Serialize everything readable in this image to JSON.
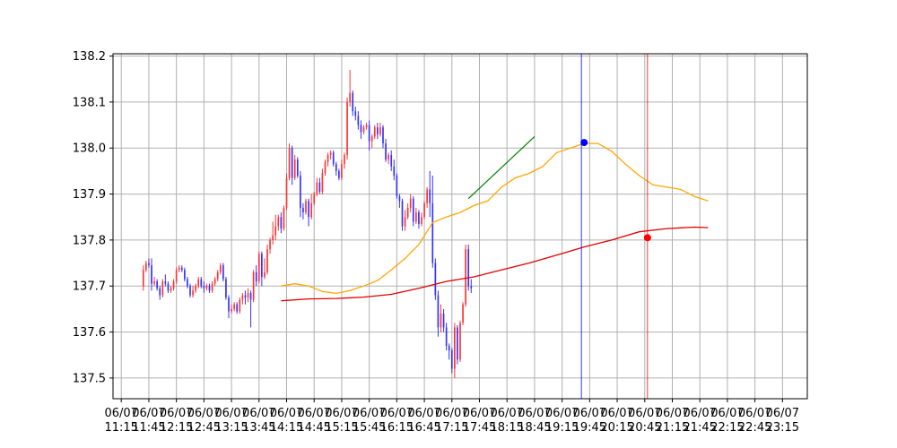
{
  "chart_data": {
    "type": "candlestick",
    "title": "",
    "xlabel": "",
    "ylabel": "",
    "ylim": [
      137.455,
      138.205
    ],
    "xlim": [
      0,
      252
    ],
    "grid": true,
    "colors": {
      "up": "#ff3333",
      "down": "#3333ff",
      "ma_short": "#ffa500",
      "ma_long": "#e00000",
      "trendline": "#008000",
      "marker_blue": "#0000ff",
      "marker_red": "#ff0000"
    },
    "y_ticks": [
      137.5,
      137.6,
      137.7,
      137.8,
      137.9,
      138.0,
      138.1,
      138.2
    ],
    "y_tick_labels": [
      "137.5",
      "137.6",
      "137.7",
      "137.8",
      "137.9",
      "138.0",
      "138.1",
      "138.2"
    ],
    "x_ticks": [
      {
        "x": 3,
        "date": "06/07",
        "time": "11:15"
      },
      {
        "x": 13,
        "date": "06/07",
        "time": "11:45"
      },
      {
        "x": 23,
        "date": "06/07",
        "time": "12:15"
      },
      {
        "x": 33,
        "date": "06/07",
        "time": "12:45"
      },
      {
        "x": 43,
        "date": "06/07",
        "time": "13:15"
      },
      {
        "x": 53,
        "date": "06/07",
        "time": "13:45"
      },
      {
        "x": 63,
        "date": "06/07",
        "time": "14:15"
      },
      {
        "x": 73,
        "date": "06/07",
        "time": "14:45"
      },
      {
        "x": 83,
        "date": "06/07",
        "time": "15:15"
      },
      {
        "x": 93,
        "date": "06/07",
        "time": "15:45"
      },
      {
        "x": 103,
        "date": "06/07",
        "time": "16:15"
      },
      {
        "x": 113,
        "date": "06/07",
        "time": "16:45"
      },
      {
        "x": 123,
        "date": "06/07",
        "time": "17:15"
      },
      {
        "x": 133,
        "date": "06/07",
        "time": "17:45"
      },
      {
        "x": 143,
        "date": "06/07",
        "time": "18:15"
      },
      {
        "x": 153,
        "date": "06/07",
        "time": "18:45"
      },
      {
        "x": 163,
        "date": "06/07",
        "time": "19:15"
      },
      {
        "x": 173,
        "date": "06/07",
        "time": "19:45"
      },
      {
        "x": 183,
        "date": "06/07",
        "time": "20:15"
      },
      {
        "x": 193,
        "date": "06/07",
        "time": "20:45"
      },
      {
        "x": 203,
        "date": "06/07",
        "time": "21:15"
      },
      {
        "x": 213,
        "date": "06/07",
        "time": "21:45"
      },
      {
        "x": 223,
        "date": "06/07",
        "time": "22:15"
      },
      {
        "x": 233,
        "date": "06/07",
        "time": "22:45"
      },
      {
        "x": 243,
        "date": "06/07",
        "time": "23:15"
      }
    ],
    "candle_start_x": 11,
    "candles": [
      [
        137.7,
        137.735,
        137.69,
        137.745
      ],
      [
        137.735,
        137.75,
        137.73,
        137.755
      ],
      [
        137.75,
        137.745,
        137.74,
        137.76
      ],
      [
        137.745,
        137.705,
        137.69,
        137.76
      ],
      [
        137.705,
        137.71,
        137.7,
        137.72
      ],
      [
        137.71,
        137.695,
        137.69,
        137.715
      ],
      [
        137.695,
        137.68,
        137.67,
        137.7
      ],
      [
        137.68,
        137.71,
        137.675,
        137.715
      ],
      [
        137.71,
        137.705,
        137.7,
        137.725
      ],
      [
        137.705,
        137.69,
        137.685,
        137.71
      ],
      [
        137.69,
        137.695,
        137.685,
        137.7
      ],
      [
        137.695,
        137.71,
        137.69,
        137.715
      ],
      [
        137.71,
        137.735,
        137.705,
        137.74
      ],
      [
        137.735,
        137.74,
        137.73,
        137.745
      ],
      [
        137.74,
        137.735,
        137.73,
        137.745
      ],
      [
        137.735,
        137.715,
        137.71,
        137.74
      ],
      [
        137.715,
        137.7,
        137.695,
        137.72
      ],
      [
        137.7,
        137.68,
        137.675,
        137.705
      ],
      [
        137.68,
        137.69,
        137.675,
        137.7
      ],
      [
        137.69,
        137.7,
        137.685,
        137.705
      ],
      [
        137.7,
        137.715,
        137.695,
        137.72
      ],
      [
        137.715,
        137.7,
        137.695,
        137.72
      ],
      [
        137.7,
        137.695,
        137.685,
        137.71
      ],
      [
        137.695,
        137.7,
        137.69,
        137.705
      ],
      [
        137.7,
        137.69,
        137.685,
        137.705
      ],
      [
        137.69,
        137.705,
        137.685,
        137.71
      ],
      [
        137.705,
        137.715,
        137.7,
        137.72
      ],
      [
        137.715,
        137.73,
        137.71,
        137.735
      ],
      [
        137.73,
        137.745,
        137.725,
        137.75
      ],
      [
        137.745,
        137.715,
        137.71,
        137.75
      ],
      [
        137.715,
        137.675,
        137.67,
        137.72
      ],
      [
        137.675,
        137.645,
        137.63,
        137.68
      ],
      [
        137.645,
        137.65,
        137.64,
        137.66
      ],
      [
        137.65,
        137.66,
        137.645,
        137.665
      ],
      [
        137.66,
        137.645,
        137.64,
        137.665
      ],
      [
        137.645,
        137.67,
        137.64,
        137.675
      ],
      [
        137.67,
        137.68,
        137.66,
        137.685
      ],
      [
        137.68,
        137.675,
        137.66,
        137.69
      ],
      [
        137.675,
        137.685,
        137.665,
        137.695
      ],
      [
        137.685,
        137.67,
        137.61,
        137.69
      ],
      [
        137.67,
        137.73,
        137.665,
        137.735
      ],
      [
        137.73,
        137.71,
        137.7,
        137.745
      ],
      [
        137.71,
        137.77,
        137.705,
        137.775
      ],
      [
        137.77,
        137.72,
        137.7,
        137.775
      ],
      [
        137.72,
        137.73,
        137.715,
        137.76
      ],
      [
        137.73,
        137.78,
        137.725,
        137.79
      ],
      [
        137.78,
        137.8,
        137.77,
        137.805
      ],
      [
        137.8,
        137.81,
        137.79,
        137.84
      ],
      [
        137.81,
        137.83,
        137.8,
        137.855
      ],
      [
        137.83,
        137.85,
        137.82,
        137.855
      ],
      [
        137.85,
        137.825,
        137.815,
        137.86
      ],
      [
        137.825,
        137.87,
        137.82,
        137.875
      ],
      [
        137.87,
        137.935,
        137.865,
        137.945
      ],
      [
        137.935,
        138.0,
        137.93,
        138.01
      ],
      [
        138.0,
        137.935,
        137.92,
        138.005
      ],
      [
        137.935,
        137.975,
        137.93,
        137.985
      ],
      [
        137.975,
        137.94,
        137.935,
        137.98
      ],
      [
        137.94,
        137.87,
        137.85,
        137.95
      ],
      [
        137.87,
        137.86,
        137.845,
        137.88
      ],
      [
        137.86,
        137.885,
        137.855,
        137.89
      ],
      [
        137.885,
        137.85,
        137.83,
        137.89
      ],
      [
        137.85,
        137.88,
        137.845,
        137.9
      ],
      [
        137.88,
        137.9,
        137.875,
        137.905
      ],
      [
        137.9,
        137.925,
        137.895,
        137.935
      ],
      [
        137.925,
        137.905,
        137.9,
        137.935
      ],
      [
        137.905,
        137.945,
        137.9,
        137.955
      ],
      [
        137.945,
        137.97,
        137.94,
        137.975
      ],
      [
        137.97,
        137.985,
        137.96,
        137.99
      ],
      [
        137.985,
        137.99,
        137.975,
        137.995
      ],
      [
        137.99,
        137.965,
        137.96,
        137.995
      ],
      [
        137.965,
        137.95,
        137.94,
        137.97
      ],
      [
        137.95,
        137.935,
        137.93,
        137.955
      ],
      [
        137.935,
        137.965,
        137.93,
        137.975
      ],
      [
        137.965,
        137.985,
        137.955,
        137.99
      ],
      [
        137.985,
        138.1,
        137.975,
        138.11
      ],
      [
        138.1,
        138.12,
        138.09,
        138.17
      ],
      [
        138.12,
        138.08,
        138.07,
        138.125
      ],
      [
        138.08,
        138.07,
        138.06,
        138.09
      ],
      [
        138.07,
        138.05,
        138.04,
        138.08
      ],
      [
        138.05,
        138.035,
        138.02,
        138.06
      ],
      [
        138.035,
        138.045,
        138.03,
        138.05
      ],
      [
        138.045,
        138.05,
        138.04,
        138.055
      ],
      [
        138.05,
        138.015,
        137.995,
        138.06
      ],
      [
        138.015,
        138.025,
        138.0,
        138.03
      ],
      [
        138.025,
        138.045,
        138.02,
        138.05
      ],
      [
        138.045,
        138.03,
        138.02,
        138.055
      ],
      [
        138.03,
        138.045,
        138.025,
        138.055
      ],
      [
        138.045,
        138.01,
        138.0,
        138.05
      ],
      [
        138.01,
        137.975,
        137.97,
        138.02
      ],
      [
        137.975,
        137.985,
        137.965,
        137.99
      ],
      [
        137.985,
        137.96,
        137.95,
        137.995
      ],
      [
        137.96,
        137.94,
        137.93,
        137.975
      ],
      [
        137.94,
        137.895,
        137.89,
        137.945
      ],
      [
        137.895,
        137.885,
        137.87,
        137.9
      ],
      [
        137.885,
        137.83,
        137.82,
        137.89
      ],
      [
        137.83,
        137.85,
        137.82,
        137.865
      ],
      [
        137.85,
        137.87,
        137.845,
        137.88
      ],
      [
        137.87,
        137.89,
        137.86,
        137.9
      ],
      [
        137.89,
        137.84,
        137.83,
        137.895
      ],
      [
        137.84,
        137.86,
        137.835,
        137.87
      ],
      [
        137.86,
        137.835,
        137.825,
        137.865
      ],
      [
        137.835,
        137.85,
        137.83,
        137.86
      ],
      [
        137.85,
        137.88,
        137.845,
        137.885
      ],
      [
        137.88,
        137.91,
        137.87,
        137.915
      ],
      [
        137.91,
        137.88,
        137.85,
        137.95
      ],
      [
        137.88,
        137.75,
        137.74,
        137.94
      ],
      [
        137.75,
        137.68,
        137.67,
        137.76
      ],
      [
        137.68,
        137.61,
        137.59,
        137.69
      ],
      [
        137.61,
        137.64,
        137.6,
        137.66
      ],
      [
        137.64,
        137.61,
        137.6,
        137.65
      ],
      [
        137.61,
        137.57,
        137.56,
        137.62
      ],
      [
        137.57,
        137.56,
        137.54,
        137.575
      ],
      [
        137.56,
        137.52,
        137.51,
        137.565
      ],
      [
        137.52,
        137.61,
        137.5,
        137.62
      ],
      [
        137.61,
        137.54,
        137.53,
        137.615
      ],
      [
        137.54,
        137.62,
        137.535,
        137.625
      ],
      [
        137.62,
        137.66,
        137.615,
        137.665
      ],
      [
        137.66,
        137.78,
        137.655,
        137.79
      ],
      [
        137.78,
        137.7,
        137.69,
        137.79
      ],
      [
        137.7,
        137.695,
        137.685,
        137.715
      ]
    ],
    "series": [
      {
        "name": "",
        "kind": "moving-average-short",
        "x": [
          61,
          66,
          71,
          76,
          81,
          86,
          91,
          96,
          101,
          106,
          111,
          116,
          121,
          126,
          131,
          136,
          141,
          146,
          151,
          156,
          161,
          166,
          171,
          176,
          181,
          186,
          191,
          196,
          201,
          206,
          211,
          216
        ],
        "values": [
          137.7,
          137.705,
          137.7,
          137.688,
          137.684,
          137.69,
          137.7,
          137.712,
          137.735,
          137.76,
          137.79,
          137.838,
          137.85,
          137.86,
          137.875,
          137.885,
          137.915,
          137.935,
          137.945,
          137.96,
          137.99,
          138.0,
          138.01,
          138.01,
          137.993,
          137.965,
          137.94,
          137.92,
          137.915,
          137.91,
          137.895,
          137.885
        ]
      },
      {
        "name": "",
        "kind": "moving-average-long",
        "x": [
          61,
          71,
          81,
          91,
          101,
          111,
          121,
          131,
          141,
          151,
          161,
          171,
          181,
          191,
          201,
          211,
          216
        ],
        "values": [
          137.668,
          137.672,
          137.673,
          137.676,
          137.682,
          137.695,
          137.71,
          137.72,
          137.735,
          137.75,
          137.767,
          137.785,
          137.8,
          137.818,
          137.825,
          137.828,
          137.827
        ]
      }
    ],
    "trendline": {
      "x1": 129,
      "y1": 137.89,
      "x2": 153,
      "y2": 138.025
    },
    "vertical_lines": [
      {
        "x": 170,
        "color": "blue"
      },
      {
        "x": 194,
        "color": "red"
      }
    ],
    "markers": [
      {
        "x": 171,
        "y": 138.012,
        "color": "blue"
      },
      {
        "x": 194,
        "y": 137.805,
        "color": "red"
      }
    ]
  }
}
